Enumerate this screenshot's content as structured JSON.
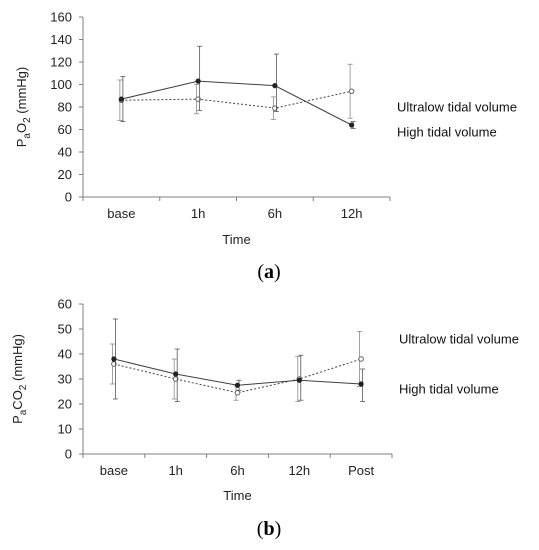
{
  "chart_data": [
    {
      "type": "line",
      "panel_label": "(a)",
      "categories": [
        "base",
        "1h",
        "6h",
        "12h"
      ],
      "xlabel": "Time",
      "ylabel": {
        "main": "P",
        "sub1": "a",
        "mid": "O",
        "sub2": "2",
        "unit": " (mmHg)"
      },
      "ylim": [
        0,
        160
      ],
      "yticks": [
        "0",
        "20",
        "40",
        "60",
        "80",
        "100",
        "120",
        "140",
        "160"
      ],
      "series": [
        {
          "name": "Ultralow tidal volume",
          "style": "dotted",
          "marker": "open-circle",
          "values": [
            86,
            87,
            79,
            94
          ],
          "err_low": [
            18,
            13,
            10,
            24
          ],
          "err_high": [
            18,
            13,
            10,
            24
          ]
        },
        {
          "name": "High tidal volume",
          "style": "solid",
          "marker": "filled-circle",
          "values": [
            87,
            103,
            99,
            64
          ],
          "err_low": [
            20,
            26,
            23,
            3
          ],
          "err_high": [
            20,
            31,
            28,
            3
          ]
        }
      ],
      "annotations": [
        {
          "text": "Ultralow tidal volume",
          "value": 80
        },
        {
          "text": "High tidal volume",
          "value": 58
        }
      ]
    },
    {
      "type": "line",
      "panel_label": "(b)",
      "categories": [
        "base",
        "1h",
        "6h",
        "12h",
        "Post"
      ],
      "xlabel": "Time",
      "ylabel": {
        "main": "P",
        "sub1": "a",
        "mid": "CO",
        "sub2": "2",
        "unit": " (mmHg)"
      },
      "ylim": [
        0,
        60
      ],
      "yticks": [
        "0",
        "10",
        "20",
        "30",
        "40",
        "50",
        "60"
      ],
      "series": [
        {
          "name": "Ultralow tidal volume",
          "style": "dotted",
          "marker": "open-circle",
          "values": [
            36,
            30,
            24.5,
            30,
            38
          ],
          "err_low": [
            8,
            8,
            3,
            9,
            11
          ],
          "err_high": [
            8,
            8,
            3,
            9,
            11
          ]
        },
        {
          "name": "High tidal volume",
          "style": "solid",
          "marker": "filled-circle",
          "values": [
            38,
            32,
            27.5,
            29.5,
            28
          ],
          "err_low": [
            16,
            11,
            2,
            8,
            7
          ],
          "err_high": [
            16,
            10,
            2,
            10,
            6
          ]
        }
      ],
      "annotations": [
        {
          "text": "Ultralow tidal volume",
          "value": 46
        },
        {
          "text": "High tidal volume",
          "value": 26
        }
      ]
    }
  ]
}
